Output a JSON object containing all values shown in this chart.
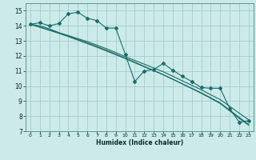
{
  "xlabel": "Humidex (Indice chaleur)",
  "bg_color": "#cceaea",
  "line_color": "#1a6e68",
  "grid_color": "#a8cccc",
  "xlim": [
    -0.5,
    23.5
  ],
  "ylim": [
    7,
    15.5
  ],
  "yticks": [
    7,
    8,
    9,
    10,
    11,
    12,
    13,
    14,
    15
  ],
  "xticks": [
    0,
    1,
    2,
    3,
    4,
    5,
    6,
    7,
    8,
    9,
    10,
    11,
    12,
    13,
    14,
    15,
    16,
    17,
    18,
    19,
    20,
    21,
    22,
    23
  ],
  "series": [
    {
      "x": [
        0,
        1,
        2,
        3,
        4,
        5,
        6,
        7,
        8,
        9,
        10,
        11,
        12,
        13,
        14,
        15,
        16,
        17,
        18,
        19,
        20,
        21,
        22,
        23
      ],
      "y": [
        14.1,
        14.2,
        14.0,
        14.15,
        14.8,
        14.9,
        14.5,
        14.35,
        13.85,
        13.85,
        12.1,
        10.3,
        11.0,
        11.1,
        11.5,
        11.05,
        10.65,
        10.3,
        9.9,
        9.85,
        9.85,
        8.5,
        7.6,
        7.7
      ],
      "marker": true
    },
    {
      "x": [
        0,
        1,
        2,
        3,
        4,
        5,
        6,
        7,
        8,
        9,
        10,
        11,
        12,
        13,
        14,
        15,
        16,
        17,
        18,
        19,
        20,
        21,
        22,
        23
      ],
      "y": [
        14.1,
        14.0,
        13.8,
        13.55,
        13.35,
        13.15,
        12.95,
        12.72,
        12.48,
        12.22,
        11.95,
        11.7,
        11.45,
        11.2,
        10.95,
        10.65,
        10.35,
        10.05,
        9.75,
        9.42,
        9.1,
        8.65,
        8.2,
        7.75
      ],
      "marker": false
    },
    {
      "x": [
        0,
        1,
        2,
        3,
        4,
        5,
        6,
        7,
        8,
        9,
        10,
        11,
        12,
        13,
        14,
        15,
        16,
        17,
        18,
        19,
        20,
        21,
        22,
        23
      ],
      "y": [
        14.1,
        13.9,
        13.7,
        13.5,
        13.28,
        13.05,
        12.82,
        12.58,
        12.33,
        12.08,
        11.82,
        11.55,
        11.28,
        11.02,
        10.75,
        10.45,
        10.15,
        9.85,
        9.55,
        9.22,
        8.88,
        8.4,
        7.92,
        7.45
      ],
      "marker": false
    },
    {
      "x": [
        0,
        1,
        2,
        3,
        4,
        5,
        6,
        7,
        8,
        9,
        10,
        11,
        12,
        13,
        14,
        15,
        16,
        17,
        18,
        19,
        20,
        21,
        22,
        23
      ],
      "y": [
        14.1,
        13.92,
        13.73,
        13.53,
        13.32,
        13.1,
        12.87,
        12.63,
        12.38,
        12.12,
        11.85,
        11.58,
        11.3,
        11.03,
        10.75,
        10.45,
        10.14,
        9.83,
        9.52,
        9.18,
        8.84,
        8.35,
        7.85,
        7.4
      ],
      "marker": false
    }
  ]
}
